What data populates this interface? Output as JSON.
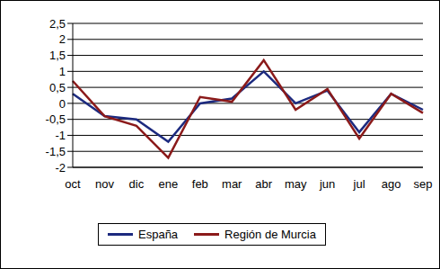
{
  "chart_data": {
    "type": "line",
    "categories": [
      "oct",
      "nov",
      "dic",
      "ene",
      "feb",
      "mar",
      "abr",
      "may",
      "jun",
      "jul",
      "ago",
      "sep"
    ],
    "series": [
      {
        "name": "España",
        "color": "#1c2a7f",
        "values": [
          0.3,
          -0.4,
          -0.5,
          -1.2,
          0.0,
          0.15,
          1.0,
          0.0,
          0.4,
          -0.9,
          0.3,
          -0.2
        ]
      },
      {
        "name": "Región de Murcia",
        "color": "#8b1a1a",
        "values": [
          0.7,
          -0.4,
          -0.7,
          -1.7,
          0.2,
          0.05,
          1.35,
          -0.2,
          0.45,
          -1.1,
          0.3,
          -0.3
        ]
      }
    ],
    "ylim": [
      -2,
      2.5
    ],
    "yticks": [
      {
        "value": -2,
        "label": "-2"
      },
      {
        "value": -1.5,
        "label": "-1,5"
      },
      {
        "value": -1,
        "label": "-1"
      },
      {
        "value": -0.5,
        "label": "-0,5"
      },
      {
        "value": 0,
        "label": "0"
      },
      {
        "value": 0.5,
        "label": "0,5"
      },
      {
        "value": 1,
        "label": "1"
      },
      {
        "value": 1.5,
        "label": "1,5"
      },
      {
        "value": 2,
        "label": "2"
      },
      {
        "value": 2.5,
        "label": "2,5"
      }
    ],
    "grid": true,
    "legend": "bottom"
  }
}
